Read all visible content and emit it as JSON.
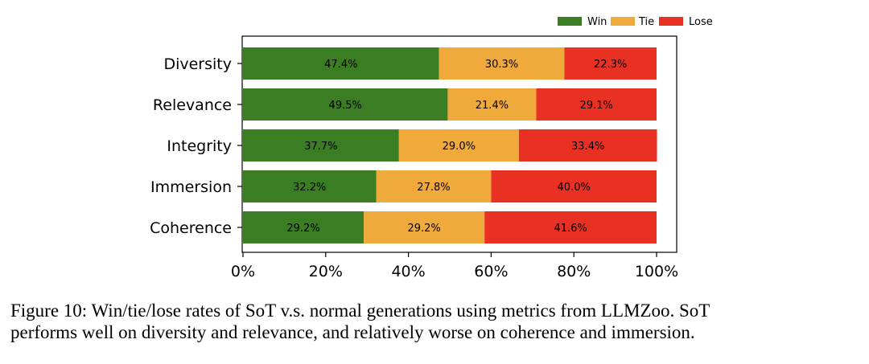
{
  "chart_data": {
    "type": "bar",
    "orientation": "horizontal",
    "stacked": true,
    "categories": [
      "Diversity",
      "Relevance",
      "Integrity",
      "Immersion",
      "Coherence"
    ],
    "series": [
      {
        "name": "Win",
        "color": "#3a7d22",
        "values": [
          47.4,
          49.5,
          37.7,
          32.2,
          29.2
        ],
        "labels": [
          "47.4%",
          "49.5%",
          "37.7%",
          "32.2%",
          "29.2%"
        ]
      },
      {
        "name": "Tie",
        "color": "#f0a93b",
        "values": [
          30.3,
          21.4,
          29.0,
          27.8,
          29.2
        ],
        "labels": [
          "30.3%",
          "21.4%",
          "29.0%",
          "27.8%",
          "29.2%"
        ]
      },
      {
        "name": "Lose",
        "color": "#e83123",
        "values": [
          22.3,
          29.1,
          33.4,
          40.0,
          41.6
        ],
        "labels": [
          "22.3%",
          "29.1%",
          "33.4%",
          "40.0%",
          "41.6%"
        ]
      }
    ],
    "xlim": [
      0,
      100
    ],
    "xticks": [
      0,
      20,
      40,
      60,
      80,
      100
    ],
    "xtick_labels": [
      "0%",
      "20%",
      "40%",
      "60%",
      "80%",
      "100%"
    ],
    "title": "",
    "xlabel": "",
    "ylabel": "",
    "legend": "top-right",
    "grid": false
  },
  "caption": {
    "line1": "Figure 10: Win/tie/lose rates of SoT v.s.  normal generations using metrics from LLMZoo.  SoT",
    "line2": "performs well on diversity and relevance, and relatively worse on coherence and immersion."
  }
}
